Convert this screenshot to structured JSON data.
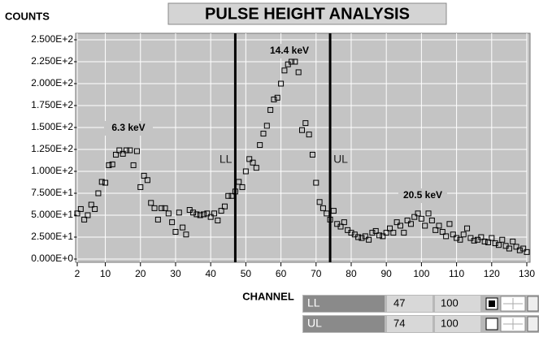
{
  "chart_data": {
    "type": "scatter",
    "title": "PULSE HEIGHT ANALYSIS",
    "ylabel": "COUNTS",
    "xlabel": "CHANNEL",
    "x": [
      2,
      3,
      4,
      5,
      6,
      7,
      8,
      9,
      10,
      11,
      12,
      13,
      14,
      15,
      16,
      17,
      18,
      19,
      20,
      21,
      22,
      23,
      24,
      25,
      26,
      27,
      28,
      29,
      30,
      31,
      32,
      33,
      34,
      35,
      36,
      37,
      38,
      39,
      40,
      41,
      42,
      43,
      44,
      45,
      46,
      47,
      48,
      49,
      50,
      51,
      52,
      53,
      54,
      55,
      56,
      57,
      58,
      59,
      60,
      61,
      62,
      63,
      64,
      65,
      66,
      67,
      68,
      69,
      70,
      71,
      72,
      73,
      74,
      75,
      76,
      77,
      78,
      79,
      80,
      81,
      82,
      83,
      84,
      85,
      86,
      87,
      88,
      89,
      90,
      91,
      92,
      93,
      94,
      95,
      96,
      97,
      98,
      99,
      100,
      101,
      102,
      103,
      104,
      105,
      106,
      107,
      108,
      109,
      110,
      111,
      112,
      113,
      114,
      115,
      116,
      117,
      118,
      119,
      120,
      121,
      122,
      123,
      124,
      125,
      126,
      127,
      128,
      129,
      130
    ],
    "values": [
      52,
      57,
      45,
      50,
      62,
      57,
      75,
      88,
      87,
      107,
      108,
      119,
      124,
      120,
      124,
      124,
      107,
      123,
      82,
      95,
      90,
      64,
      58,
      45,
      58,
      58,
      52,
      42,
      31,
      53,
      36,
      28,
      56,
      53,
      51,
      50,
      51,
      52,
      48,
      52,
      44,
      55,
      60,
      72,
      72,
      77,
      88,
      82,
      100,
      114,
      110,
      104,
      130,
      143,
      152,
      170,
      182,
      184,
      200,
      215,
      222,
      225,
      225,
      213,
      147,
      155,
      142,
      119,
      87,
      65,
      58,
      52,
      45,
      55,
      40,
      37,
      42,
      33,
      30,
      28,
      25,
      24,
      26,
      22,
      30,
      32,
      27,
      26,
      30,
      35,
      30,
      42,
      38,
      30,
      44,
      40,
      48,
      52,
      46,
      38,
      52,
      44,
      33,
      38,
      31,
      26,
      40,
      28,
      24,
      22,
      28,
      35,
      24,
      21,
      22,
      25,
      20,
      19,
      24,
      18,
      16,
      22,
      15,
      12,
      20,
      14,
      10,
      12,
      8
    ],
    "color": "#000000",
    "grid": true,
    "xlim": [
      2,
      130
    ],
    "xticks": [
      2,
      10,
      20,
      30,
      40,
      50,
      60,
      70,
      80,
      90,
      100,
      110,
      120,
      130
    ],
    "ylim": [
      0,
      250
    ],
    "yticks": [
      {
        "value": 0,
        "label": "0.000E+0"
      },
      {
        "value": 25,
        "label": "2.500E+1"
      },
      {
        "value": 50,
        "label": "5.000E+1"
      },
      {
        "value": 75,
        "label": "7.500E+1"
      },
      {
        "value": 100,
        "label": "1.000E+2"
      },
      {
        "value": 125,
        "label": "1.250E+2"
      },
      {
        "value": 150,
        "label": "1.500E+2"
      },
      {
        "value": 175,
        "label": "1.750E+2"
      },
      {
        "value": 200,
        "label": "2.000E+2"
      },
      {
        "value": 225,
        "label": "2.250E+2"
      },
      {
        "value": 250,
        "label": "2.500E+2"
      }
    ],
    "annotations": [
      "6.3 keV",
      "14.4 keV",
      "20.5 keV"
    ],
    "markers": [
      {
        "label": "LL",
        "channel": 47,
        "upper": 100
      },
      {
        "label": "UL",
        "channel": 74,
        "upper": 100
      }
    ]
  }
}
